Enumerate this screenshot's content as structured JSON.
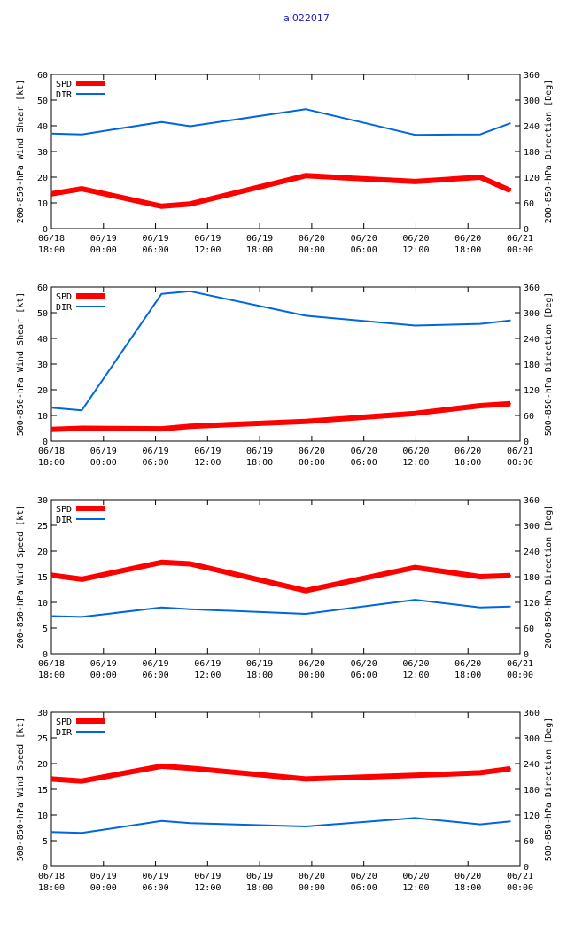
{
  "page_title": "al022017",
  "chart_data": [
    {
      "type": "line",
      "ylabel": "200-850-hPa Wind Shear [kt]",
      "y2label": "200-850-hPa Direction [Deg]",
      "ylim": [
        0,
        60
      ],
      "y2lim": [
        0,
        360
      ],
      "yticks": [
        "0",
        "10",
        "20",
        "30",
        "40",
        "50",
        "60"
      ],
      "y2ticks": [
        "0",
        "60",
        "120",
        "180",
        "240",
        "300",
        "360"
      ],
      "xlim": [
        0,
        54
      ],
      "xticks": [
        {
          "pos": 0,
          "date": "06/18",
          "time": "18:00"
        },
        {
          "pos": 6,
          "date": "06/19",
          "time": "00:00"
        },
        {
          "pos": 12,
          "date": "06/19",
          "time": "06:00"
        },
        {
          "pos": 18,
          "date": "06/19",
          "time": "12:00"
        },
        {
          "pos": 24,
          "date": "06/19",
          "time": "18:00"
        },
        {
          "pos": 30,
          "date": "06/20",
          "time": "00:00"
        },
        {
          "pos": 36,
          "date": "06/20",
          "time": "06:00"
        },
        {
          "pos": 42,
          "date": "06/20",
          "time": "12:00"
        },
        {
          "pos": 48,
          "date": "06/20",
          "time": "18:00"
        },
        {
          "pos": 54,
          "date": "06/21",
          "time": "00:00"
        }
      ],
      "series": [
        {
          "name": "SPD",
          "axis": "left",
          "color": "#ff0000",
          "x": [
            0,
            3.5,
            12.7,
            16,
            29.3,
            41.9,
            49.4,
            52.9
          ],
          "values": [
            13.5,
            15.5,
            8.7,
            9.6,
            20.6,
            18.3,
            20,
            14.8
          ]
        },
        {
          "name": "DIR",
          "axis": "right",
          "color": "#0066dd",
          "x": [
            0,
            3.5,
            12.7,
            16,
            29.3,
            41.9,
            49.4,
            52.9
          ],
          "values": [
            222,
            220,
            249,
            239,
            279,
            219,
            220,
            246
          ]
        }
      ]
    },
    {
      "type": "line",
      "ylabel": "500-850-hPa Wind Shear [kt]",
      "y2label": "500-850-hPa Direction [Deg]",
      "ylim": [
        0,
        60
      ],
      "y2lim": [
        0,
        360
      ],
      "yticks": [
        "0",
        "10",
        "20",
        "30",
        "40",
        "50",
        "60"
      ],
      "y2ticks": [
        "0",
        "60",
        "120",
        "180",
        "240",
        "300",
        "360"
      ],
      "xlim": [
        0,
        54
      ],
      "xticks": [
        {
          "pos": 0,
          "date": "06/18",
          "time": "18:00"
        },
        {
          "pos": 6,
          "date": "06/19",
          "time": "00:00"
        },
        {
          "pos": 12,
          "date": "06/19",
          "time": "06:00"
        },
        {
          "pos": 18,
          "date": "06/19",
          "time": "12:00"
        },
        {
          "pos": 24,
          "date": "06/19",
          "time": "18:00"
        },
        {
          "pos": 30,
          "date": "06/20",
          "time": "00:00"
        },
        {
          "pos": 36,
          "date": "06/20",
          "time": "06:00"
        },
        {
          "pos": 42,
          "date": "06/20",
          "time": "12:00"
        },
        {
          "pos": 48,
          "date": "06/20",
          "time": "18:00"
        },
        {
          "pos": 54,
          "date": "06/21",
          "time": "00:00"
        }
      ],
      "series": [
        {
          "name": "SPD",
          "axis": "left",
          "color": "#ff0000",
          "x": [
            0,
            3.5,
            12.7,
            16,
            29.3,
            41.9,
            49.4,
            52.9
          ],
          "values": [
            4.6,
            5,
            4.8,
            5.8,
            7.7,
            10.8,
            13.8,
            14.6
          ]
        },
        {
          "name": "DIR",
          "axis": "right",
          "color": "#0066dd",
          "x": [
            0,
            3.5,
            12.7,
            16,
            29.3,
            41.9,
            49.4,
            52.9
          ],
          "values": [
            78,
            72,
            344,
            350,
            293,
            270,
            274,
            282
          ]
        }
      ]
    },
    {
      "type": "line",
      "ylabel": "200-850-hPa Wind Speed [kt]",
      "y2label": "200-850-hPa Direction [Deg]",
      "ylim": [
        0,
        30
      ],
      "y2lim": [
        0,
        360
      ],
      "yticks": [
        "0",
        "5",
        "10",
        "15",
        "20",
        "25",
        "30"
      ],
      "y2ticks": [
        "0",
        "60",
        "120",
        "180",
        "240",
        "300",
        "360"
      ],
      "xlim": [
        0,
        54
      ],
      "xticks": [
        {
          "pos": 0,
          "date": "06/18",
          "time": "18:00"
        },
        {
          "pos": 6,
          "date": "06/19",
          "time": "00:00"
        },
        {
          "pos": 12,
          "date": "06/19",
          "time": "06:00"
        },
        {
          "pos": 18,
          "date": "06/19",
          "time": "12:00"
        },
        {
          "pos": 24,
          "date": "06/19",
          "time": "18:00"
        },
        {
          "pos": 30,
          "date": "06/20",
          "time": "00:00"
        },
        {
          "pos": 36,
          "date": "06/20",
          "time": "06:00"
        },
        {
          "pos": 42,
          "date": "06/20",
          "time": "12:00"
        },
        {
          "pos": 48,
          "date": "06/20",
          "time": "18:00"
        },
        {
          "pos": 54,
          "date": "06/21",
          "time": "00:00"
        }
      ],
      "series": [
        {
          "name": "SPD",
          "axis": "left",
          "color": "#ff0000",
          "x": [
            0,
            3.5,
            12.7,
            16,
            29.3,
            41.9,
            49.4,
            52.9
          ],
          "values": [
            15.3,
            14.5,
            17.8,
            17.5,
            12.3,
            16.8,
            15,
            15.2
          ]
        },
        {
          "name": "DIR",
          "axis": "right",
          "color": "#0066dd",
          "x": [
            0,
            3.5,
            12.7,
            16,
            29.3,
            41.9,
            49.4,
            52.9
          ],
          "values": [
            88,
            86,
            108,
            104,
            93,
            126,
            108,
            110
          ]
        }
      ]
    },
    {
      "type": "line",
      "ylabel": "500-850-hPa Wind Speed [kt]",
      "y2label": "500-850-hPa Direction [Deg]",
      "ylim": [
        0,
        30
      ],
      "y2lim": [
        0,
        360
      ],
      "yticks": [
        "0",
        "5",
        "10",
        "15",
        "20",
        "25",
        "30"
      ],
      "y2ticks": [
        "0",
        "60",
        "120",
        "180",
        "240",
        "300",
        "360"
      ],
      "xlim": [
        0,
        54
      ],
      "xticks": [
        {
          "pos": 0,
          "date": "06/18",
          "time": "18:00"
        },
        {
          "pos": 6,
          "date": "06/19",
          "time": "00:00"
        },
        {
          "pos": 12,
          "date": "06/19",
          "time": "06:00"
        },
        {
          "pos": 18,
          "date": "06/19",
          "time": "12:00"
        },
        {
          "pos": 24,
          "date": "06/19",
          "time": "18:00"
        },
        {
          "pos": 30,
          "date": "06/20",
          "time": "00:00"
        },
        {
          "pos": 36,
          "date": "06/20",
          "time": "06:00"
        },
        {
          "pos": 42,
          "date": "06/20",
          "time": "12:00"
        },
        {
          "pos": 48,
          "date": "06/20",
          "time": "18:00"
        },
        {
          "pos": 54,
          "date": "06/21",
          "time": "00:00"
        }
      ],
      "series": [
        {
          "name": "SPD",
          "axis": "left",
          "color": "#ff0000",
          "x": [
            0,
            3.5,
            12.7,
            16,
            29.3,
            41.9,
            49.4,
            52.9
          ],
          "values": [
            17,
            16.6,
            19.5,
            19.1,
            17,
            17.7,
            18.2,
            19
          ]
        },
        {
          "name": "DIR",
          "axis": "right",
          "color": "#0066dd",
          "x": [
            0,
            3.5,
            12.7,
            16,
            29.3,
            41.9,
            49.4,
            52.9
          ],
          "values": [
            80,
            78,
            106,
            101,
            93,
            113,
            98,
            105
          ]
        }
      ]
    }
  ]
}
